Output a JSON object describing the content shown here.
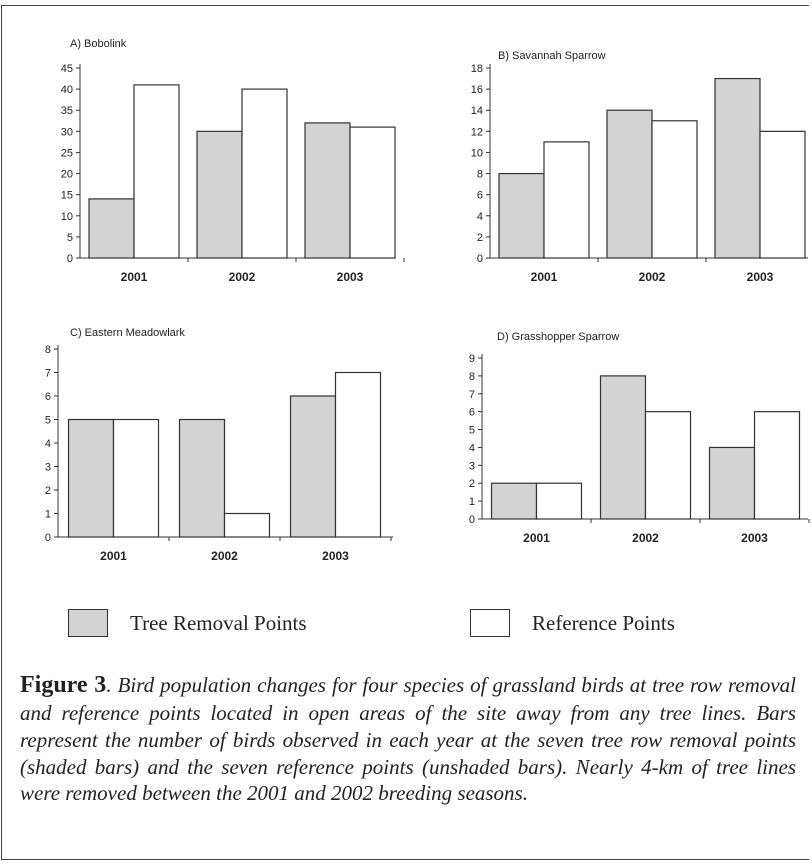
{
  "colors": {
    "tree_removal": "#d3d3d3",
    "reference": "#ffffff",
    "axis": "#333333"
  },
  "chart_data": [
    {
      "type": "bar",
      "title": "A) Bobolink",
      "categories": [
        "2001",
        "2002",
        "2003"
      ],
      "series": [
        {
          "name": "Tree Removal Points",
          "values": [
            14,
            30,
            32
          ]
        },
        {
          "name": "Reference Points",
          "values": [
            41,
            40,
            31
          ]
        }
      ],
      "yticks": [
        0,
        5,
        10,
        15,
        20,
        25,
        30,
        35,
        40,
        45
      ],
      "ylim": [
        0,
        45
      ],
      "grid": false
    },
    {
      "type": "bar",
      "title": "B) Savannah Sparrow",
      "categories": [
        "2001",
        "2002",
        "2003"
      ],
      "series": [
        {
          "name": "Tree Removal Points",
          "values": [
            8,
            14,
            17
          ]
        },
        {
          "name": "Reference Points",
          "values": [
            11,
            13,
            12
          ]
        }
      ],
      "yticks": [
        0,
        2,
        4,
        6,
        8,
        10,
        12,
        14,
        16,
        18
      ],
      "ylim": [
        0,
        18
      ],
      "grid": false
    },
    {
      "type": "bar",
      "title": "C) Eastern Meadowlark",
      "categories": [
        "2001",
        "2002",
        "2003"
      ],
      "series": [
        {
          "name": "Tree Removal Points",
          "values": [
            5,
            5,
            6
          ]
        },
        {
          "name": "Reference Points",
          "values": [
            5,
            1,
            7
          ]
        }
      ],
      "yticks": [
        0,
        1,
        2,
        3,
        4,
        5,
        6,
        7,
        8
      ],
      "ylim": [
        0,
        8
      ],
      "grid": false
    },
    {
      "type": "bar",
      "title": "D) Grasshopper Sparrow",
      "categories": [
        "2001",
        "2002",
        "2003"
      ],
      "series": [
        {
          "name": "Tree Removal Points",
          "values": [
            2,
            8,
            4
          ]
        },
        {
          "name": "Reference Points",
          "values": [
            2,
            6,
            6
          ]
        }
      ],
      "yticks": [
        0,
        1,
        2,
        3,
        4,
        5,
        6,
        7,
        8,
        9
      ],
      "ylim": [
        0,
        9
      ],
      "grid": false
    }
  ],
  "legend": {
    "tree_removal_label": "Tree Removal Points",
    "reference_label": "Reference Points"
  },
  "caption": {
    "label": "Figure 3",
    "text": ". Bird population changes for four species of grassland birds at tree row removal and reference points located in open areas of the site away from any tree lines. Bars represent the number of birds observed in each year at the seven tree row removal points (shaded bars) and the seven reference points (unshaded bars). Nearly 4-km of tree lines were removed between the 2001 and 2002 breeding seasons."
  }
}
